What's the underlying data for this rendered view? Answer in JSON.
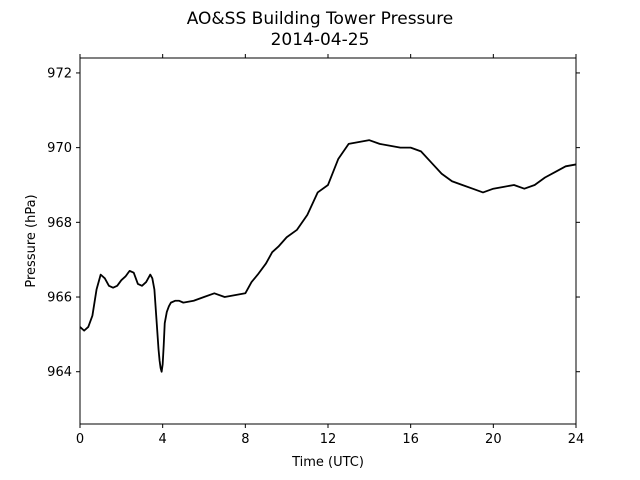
{
  "chart_data": {
    "type": "line",
    "title": "AO&SS Building Tower Pressure",
    "subtitle": "2014-04-25",
    "xlabel": "Time (UTC)",
    "ylabel": "Pressure (hPa)",
    "xlim": [
      0,
      24
    ],
    "ylim": [
      962.6,
      972.4
    ],
    "x_ticks": [
      0,
      4,
      8,
      12,
      16,
      20,
      24
    ],
    "y_ticks": [
      964,
      966,
      968,
      970,
      972
    ],
    "grid": false,
    "legend": "none",
    "line_color": "#000000",
    "series": [
      {
        "x": [
          0,
          0.2,
          0.4,
          0.6,
          0.8,
          1.0,
          1.2,
          1.4,
          1.6,
          1.8,
          2.0,
          2.2,
          2.4,
          2.6,
          2.8,
          3.0,
          3.2,
          3.4,
          3.5,
          3.6,
          3.7,
          3.8,
          3.85,
          3.9,
          3.95,
          4.0,
          4.05,
          4.1,
          4.2,
          4.3,
          4.4,
          4.6,
          4.8,
          5.0,
          5.5,
          6.0,
          6.5,
          7.0,
          7.5,
          8.0,
          8.3,
          8.6,
          9.0,
          9.3,
          9.6,
          10.0,
          10.5,
          11.0,
          11.5,
          12.0,
          12.5,
          13.0,
          13.5,
          14.0,
          14.5,
          15.0,
          15.5,
          16.0,
          16.5,
          17.0,
          17.5,
          18.0,
          18.5,
          19.0,
          19.5,
          20.0,
          20.5,
          21.0,
          21.5,
          22.0,
          22.5,
          23.0,
          23.5,
          24.0
        ],
        "values": [
          965.2,
          965.1,
          965.2,
          965.5,
          966.2,
          966.6,
          966.5,
          966.3,
          966.25,
          966.3,
          966.45,
          966.55,
          966.7,
          966.65,
          966.35,
          966.3,
          966.4,
          966.6,
          966.5,
          966.2,
          965.4,
          964.6,
          964.3,
          964.1,
          964.0,
          964.2,
          964.7,
          965.3,
          965.6,
          965.75,
          965.85,
          965.9,
          965.9,
          965.85,
          965.9,
          966.0,
          966.1,
          966.0,
          966.05,
          966.1,
          966.4,
          966.6,
          966.9,
          967.2,
          967.35,
          967.6,
          967.8,
          968.2,
          968.8,
          969.0,
          969.7,
          970.1,
          970.15,
          970.2,
          970.1,
          970.05,
          970.0,
          970.0,
          969.9,
          969.6,
          969.3,
          969.1,
          969.0,
          968.9,
          968.8,
          968.9,
          968.95,
          969.0,
          968.9,
          969.0,
          969.2,
          969.35,
          969.5,
          969.55
        ]
      }
    ]
  }
}
